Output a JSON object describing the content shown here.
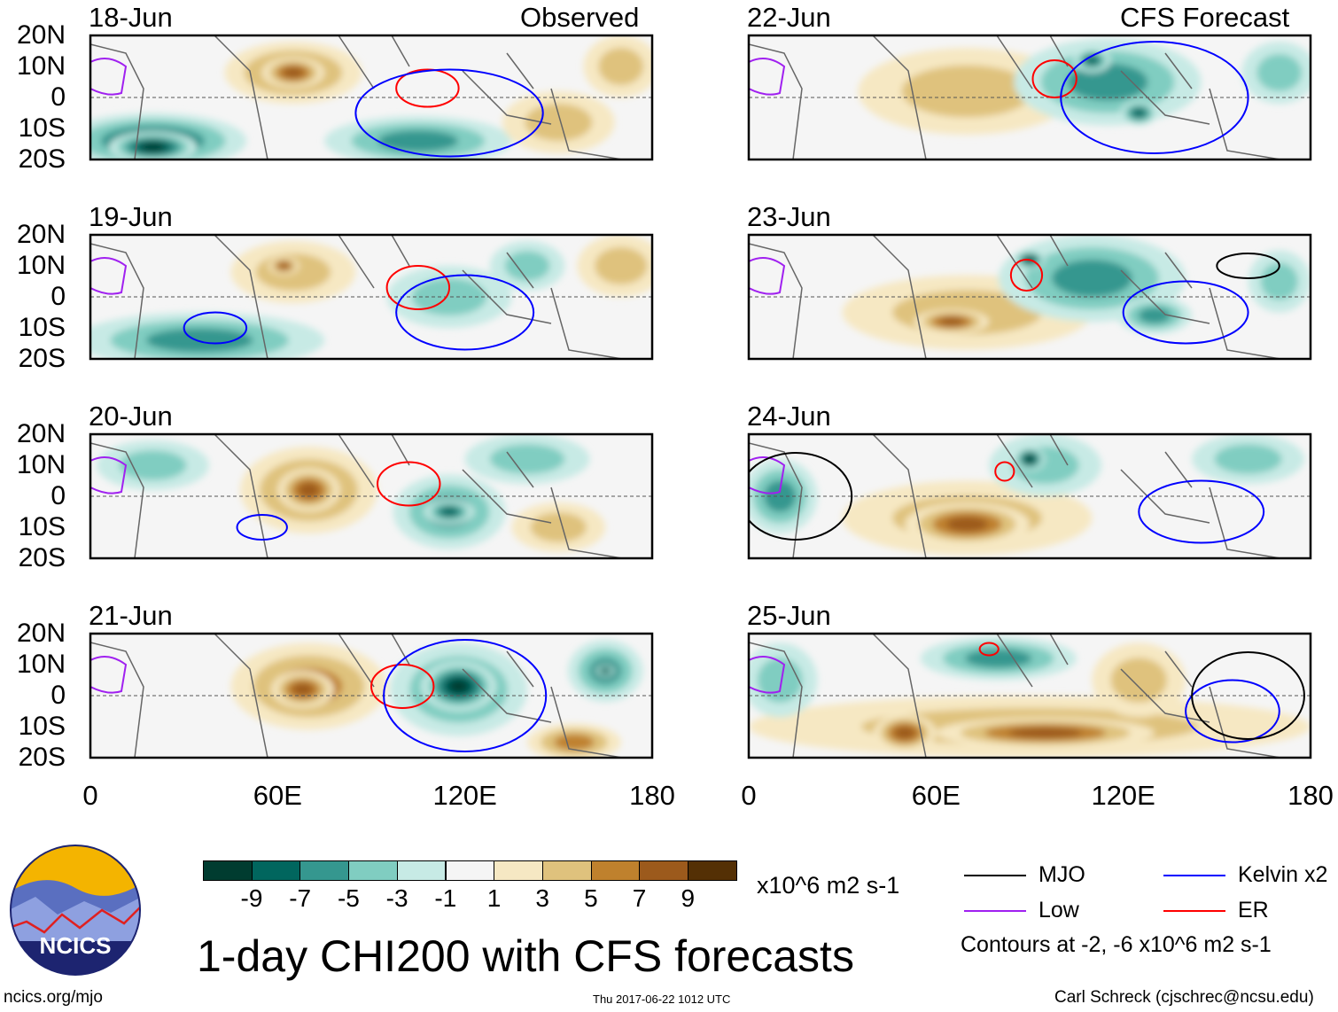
{
  "header": {
    "left_label": "Observed",
    "right_label": "CFS Forecast"
  },
  "lat_labels": [
    "20N",
    "10N",
    "0",
    "10S",
    "20S"
  ],
  "lon_labels": [
    "0",
    "60E",
    "120E",
    "180"
  ],
  "panels": [
    {
      "date": "18-Jun",
      "col": 0,
      "row": 0,
      "features": [
        {
          "lon": 65,
          "lat": 8,
          "rl": 22,
          "ra": 10,
          "v": 4
        },
        {
          "lon": 65,
          "lat": 8,
          "rl": 10,
          "ra": 5,
          "v": 6
        },
        {
          "lon": 20,
          "lat": -14,
          "rl": 30,
          "ra": 9,
          "v": -6
        },
        {
          "lon": 20,
          "lat": -16,
          "rl": 14,
          "ra": 5,
          "v": -8
        },
        {
          "lon": 105,
          "lat": -14,
          "rl": 30,
          "ra": 8,
          "v": -4
        },
        {
          "lon": 150,
          "lat": -8,
          "rl": 18,
          "ra": 10,
          "v": 2
        },
        {
          "lon": 170,
          "lat": 10,
          "rl": 12,
          "ra": 10,
          "v": 2
        }
      ],
      "contours": [
        {
          "t": "ER",
          "lon": 108,
          "lat": 3,
          "rl": 10,
          "ra": 6
        },
        {
          "t": "Kelvin",
          "lon": 115,
          "lat": -5,
          "rl": 30,
          "ra": 14
        }
      ]
    },
    {
      "date": "19-Jun",
      "col": 0,
      "row": 1,
      "features": [
        {
          "lon": 65,
          "lat": 8,
          "rl": 20,
          "ra": 10,
          "v": 3
        },
        {
          "lon": 62,
          "lat": 10,
          "rl": 5,
          "ra": 3,
          "v": 6
        },
        {
          "lon": 35,
          "lat": -14,
          "rl": 40,
          "ra": 9,
          "v": -5
        },
        {
          "lon": 115,
          "lat": 0,
          "rl": 20,
          "ra": 10,
          "v": -3
        },
        {
          "lon": 140,
          "lat": 10,
          "rl": 12,
          "ra": 8,
          "v": -3
        },
        {
          "lon": 170,
          "lat": 10,
          "rl": 14,
          "ra": 10,
          "v": 2
        }
      ],
      "contours": [
        {
          "t": "ER",
          "lon": 105,
          "lat": 3,
          "rl": 10,
          "ra": 7
        },
        {
          "t": "Kelvin",
          "lon": 40,
          "lat": -10,
          "rl": 10,
          "ra": 5
        },
        {
          "t": "Kelvin",
          "lon": 120,
          "lat": -5,
          "rl": 22,
          "ra": 12
        }
      ]
    },
    {
      "date": "20-Jun",
      "col": 0,
      "row": 2,
      "features": [
        {
          "lon": 70,
          "lat": 2,
          "rl": 22,
          "ra": 14,
          "v": 4
        },
        {
          "lon": 70,
          "lat": 2,
          "rl": 10,
          "ra": 7,
          "v": 6
        },
        {
          "lon": 115,
          "lat": -5,
          "rl": 18,
          "ra": 12,
          "v": -4
        },
        {
          "lon": 115,
          "lat": -5,
          "rl": 8,
          "ra": 4,
          "v": -6
        },
        {
          "lon": 140,
          "lat": 12,
          "rl": 20,
          "ra": 8,
          "v": -3
        },
        {
          "lon": 150,
          "lat": -10,
          "rl": 15,
          "ra": 8,
          "v": 2
        },
        {
          "lon": 20,
          "lat": 10,
          "rl": 18,
          "ra": 8,
          "v": -3
        }
      ],
      "contours": [
        {
          "t": "ER",
          "lon": 102,
          "lat": 4,
          "rl": 10,
          "ra": 7
        },
        {
          "t": "Kelvin",
          "lon": 55,
          "lat": -10,
          "rl": 8,
          "ra": 4
        }
      ]
    },
    {
      "date": "21-Jun",
      "col": 0,
      "row": 3,
      "features": [
        {
          "lon": 70,
          "lat": 3,
          "rl": 25,
          "ra": 14,
          "v": 4
        },
        {
          "lon": 68,
          "lat": 2,
          "rl": 10,
          "ra": 6,
          "v": 6
        },
        {
          "lon": 118,
          "lat": 2,
          "rl": 22,
          "ra": 15,
          "v": -5
        },
        {
          "lon": 118,
          "lat": 3,
          "rl": 12,
          "ra": 8,
          "v": -8
        },
        {
          "lon": 165,
          "lat": 8,
          "rl": 12,
          "ra": 10,
          "v": -5
        },
        {
          "lon": 165,
          "lat": 8,
          "rl": 3,
          "ra": 2,
          "v": -9
        },
        {
          "lon": 155,
          "lat": -15,
          "rl": 15,
          "ra": 6,
          "v": 4
        }
      ],
      "contours": [
        {
          "t": "ER",
          "lon": 100,
          "lat": 3,
          "rl": 10,
          "ra": 7
        },
        {
          "t": "Kelvin",
          "lon": 120,
          "lat": 0,
          "rl": 26,
          "ra": 18
        }
      ]
    },
    {
      "date": "22-Jun",
      "col": 1,
      "row": 0,
      "features": [
        {
          "lon": 70,
          "lat": 2,
          "rl": 35,
          "ra": 14,
          "v": 3
        },
        {
          "lon": 115,
          "lat": 5,
          "rl": 30,
          "ra": 14,
          "v": -4
        },
        {
          "lon": 110,
          "lat": 12,
          "rl": 6,
          "ra": 4,
          "v": -7
        },
        {
          "lon": 125,
          "lat": -5,
          "rl": 6,
          "ra": 4,
          "v": -7
        },
        {
          "lon": 170,
          "lat": 8,
          "rl": 12,
          "ra": 10,
          "v": -3
        }
      ],
      "contours": [
        {
          "t": "ER",
          "lon": 98,
          "lat": 6,
          "rl": 7,
          "ra": 6
        },
        {
          "t": "Kelvin",
          "lon": 130,
          "lat": 0,
          "rl": 30,
          "ra": 18
        }
      ]
    },
    {
      "date": "23-Jun",
      "col": 1,
      "row": 1,
      "features": [
        {
          "lon": 70,
          "lat": -5,
          "rl": 40,
          "ra": 12,
          "v": 3
        },
        {
          "lon": 65,
          "lat": -8,
          "rl": 12,
          "ra": 4,
          "v": 6
        },
        {
          "lon": 110,
          "lat": 6,
          "rl": 30,
          "ra": 14,
          "v": -4
        },
        {
          "lon": 90,
          "lat": 12,
          "rl": 5,
          "ra": 3,
          "v": -8
        },
        {
          "lon": 130,
          "lat": -6,
          "rl": 12,
          "ra": 6,
          "v": -5
        },
        {
          "lon": 170,
          "lat": 5,
          "rl": 10,
          "ra": 10,
          "v": -3
        }
      ],
      "contours": [
        {
          "t": "ER",
          "lon": 89,
          "lat": 7,
          "rl": 5,
          "ra": 5
        },
        {
          "t": "MJO",
          "lon": 160,
          "lat": 10,
          "rl": 10,
          "ra": 4
        },
        {
          "t": "Kelvin",
          "lon": 140,
          "lat": -5,
          "rl": 20,
          "ra": 10
        }
      ]
    },
    {
      "date": "24-Jun",
      "col": 1,
      "row": 2,
      "features": [
        {
          "lon": 70,
          "lat": -7,
          "rl": 40,
          "ra": 12,
          "v": 3
        },
        {
          "lon": 70,
          "lat": -9,
          "rl": 20,
          "ra": 7,
          "v": 6
        },
        {
          "lon": 95,
          "lat": 10,
          "rl": 18,
          "ra": 10,
          "v": -3
        },
        {
          "lon": 90,
          "lat": 12,
          "rl": 5,
          "ra": 4,
          "v": -8
        },
        {
          "lon": 10,
          "lat": 0,
          "rl": 12,
          "ra": 12,
          "v": -4
        },
        {
          "lon": 160,
          "lat": 12,
          "rl": 18,
          "ra": 8,
          "v": -2
        }
      ],
      "contours": [
        {
          "t": "ER",
          "lon": 82,
          "lat": 8,
          "rl": 3,
          "ra": 3
        },
        {
          "t": "Kelvin",
          "lon": 145,
          "lat": -5,
          "rl": 20,
          "ra": 10
        },
        {
          "t": "MJO",
          "lon": 15,
          "lat": 0,
          "rl": 18,
          "ra": 14
        }
      ]
    },
    {
      "date": "25-Jun",
      "col": 1,
      "row": 3,
      "features": [
        {
          "lon": 90,
          "lat": -10,
          "rl": 90,
          "ra": 10,
          "v": 3
        },
        {
          "lon": 95,
          "lat": -12,
          "rl": 35,
          "ra": 5,
          "v": 6
        },
        {
          "lon": 50,
          "lat": -12,
          "rl": 10,
          "ra": 6,
          "v": 6
        },
        {
          "lon": 80,
          "lat": 12,
          "rl": 25,
          "ra": 7,
          "v": -4
        },
        {
          "lon": 10,
          "lat": 5,
          "rl": 12,
          "ra": 12,
          "v": -3
        },
        {
          "lon": 125,
          "lat": 5,
          "rl": 15,
          "ra": 12,
          "v": 3
        }
      ],
      "contours": [
        {
          "t": "ER",
          "lon": 77,
          "lat": 15,
          "rl": 3,
          "ra": 2
        },
        {
          "t": "Kelvin",
          "lon": 155,
          "lat": -5,
          "rl": 15,
          "ra": 10
        },
        {
          "t": "MJO",
          "lon": 160,
          "lat": 0,
          "rl": 18,
          "ra": 14
        }
      ]
    }
  ],
  "colorbar": {
    "colors": [
      "#003c30",
      "#01665e",
      "#35978f",
      "#80cdc1",
      "#c7eae5",
      "#f5f5f5",
      "#f6e8c3",
      "#dfc27d",
      "#bf812d",
      "#9c5a1c",
      "#543005"
    ],
    "labels": [
      "-9",
      "-7",
      "-5",
      "-3",
      "-1",
      "1",
      "3",
      "5",
      "7",
      "9"
    ],
    "units": "x10^6 m2 s-1"
  },
  "title": "1-day CHI200 with CFS forecasts",
  "legend": {
    "items": [
      {
        "label": "MJO",
        "color": "#000000"
      },
      {
        "label": "Kelvin x2",
        "color": "#0000ff"
      },
      {
        "label": "Low",
        "color": "#a020f0"
      },
      {
        "label": "ER",
        "color": "#ff0000"
      }
    ],
    "note": "Contours at -2, -6 x10^6 m2 s-1"
  },
  "contour_colors": {
    "MJO": "#000000",
    "Kelvin": "#0000ff",
    "ER": "#ff0000",
    "Low": "#a020f0"
  },
  "footer": {
    "url": "ncics.org/mjo",
    "timestamp": "Thu 2017-06-22 1012 UTC",
    "credit": "Carl Schreck (cjschrec@ncsu.edu)"
  },
  "logo": {
    "text": "NCICS"
  }
}
